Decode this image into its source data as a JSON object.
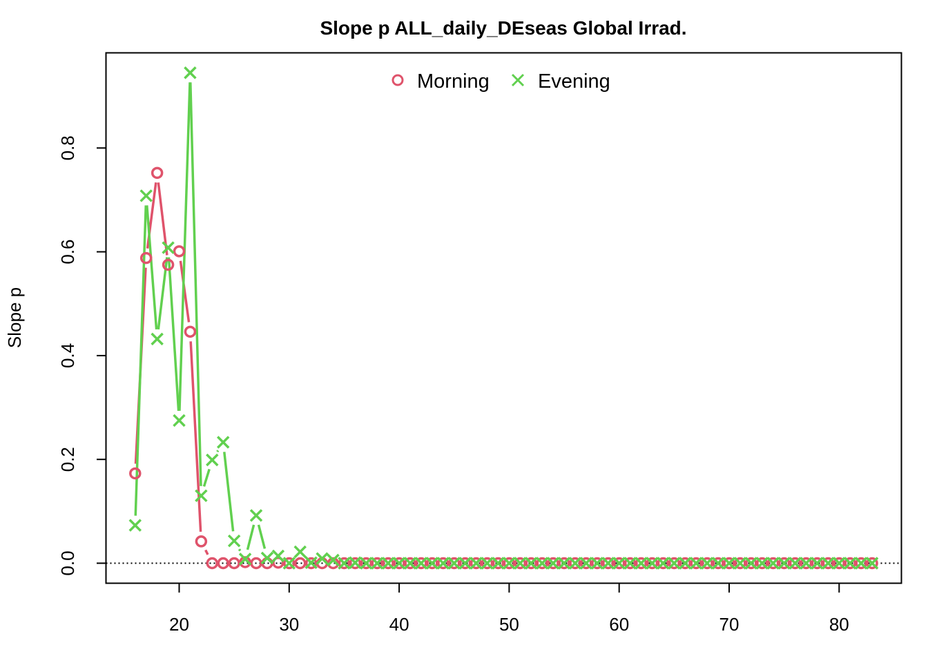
{
  "chart_data": {
    "type": "line",
    "title": "Slope p ALL_daily_DEseas Global Irrad.",
    "xlabel": "",
    "ylabel": "Slope p",
    "xlim": [
      16,
      83
    ],
    "ylim": [
      0,
      0.95
    ],
    "x_ticks": [
      "20",
      "30",
      "40",
      "50",
      "60",
      "70",
      "80"
    ],
    "y_ticks": [
      "0.0",
      "0.2",
      "0.4",
      "0.6",
      "0.8"
    ],
    "reference_line": {
      "y": 0,
      "style": "dotted"
    },
    "legend_position": "top-center",
    "grid": false,
    "x": [
      16,
      17,
      18,
      19,
      20,
      21,
      22,
      23,
      24,
      25,
      26,
      27,
      28,
      29,
      30,
      31,
      32,
      33,
      34,
      35,
      36,
      37,
      38,
      39,
      40,
      41,
      42,
      43,
      44,
      45,
      46,
      47,
      48,
      49,
      50,
      51,
      52,
      53,
      54,
      55,
      56,
      57,
      58,
      59,
      60,
      61,
      62,
      63,
      64,
      65,
      66,
      67,
      68,
      69,
      70,
      71,
      72,
      73,
      74,
      75,
      76,
      77,
      78,
      79,
      80,
      81,
      82,
      83
    ],
    "series": [
      {
        "name": "Morning",
        "color": "#DF536B",
        "marker": "circle",
        "values": [
          0.173,
          0.588,
          0.752,
          0.575,
          0.601,
          0.446,
          0.042,
          0.0,
          0.0,
          0.0,
          0.002,
          0.0,
          0.0,
          0.001,
          0.0,
          0.0,
          0.0,
          0.0,
          0.0,
          0.0,
          0.0,
          0.0,
          0.0,
          0.0,
          0.0,
          0.0,
          0.0,
          0.0,
          0.0,
          0.0,
          0.0,
          0.0,
          0.0,
          0.0,
          0.0,
          0.0,
          0.0,
          0.0,
          0.0,
          0.0,
          0.0,
          0.0,
          0.0,
          0.0,
          0.0,
          0.0,
          0.0,
          0.0,
          0.0,
          0.0,
          0.0,
          0.0,
          0.0,
          0.0,
          0.0,
          0.0,
          0.0,
          0.0,
          0.0,
          0.0,
          0.0,
          0.0,
          0.0,
          0.0,
          0.0,
          0.0,
          0.0,
          0.0
        ]
      },
      {
        "name": "Evening",
        "color": "#61D04F",
        "marker": "x",
        "values": [
          0.073,
          0.708,
          0.432,
          0.608,
          0.275,
          0.945,
          0.13,
          0.199,
          0.233,
          0.043,
          0.008,
          0.092,
          0.01,
          0.014,
          0.0,
          0.022,
          0.001,
          0.009,
          0.006,
          0.0,
          0.001,
          0.0,
          0.0,
          0.0,
          0.0,
          0.0,
          0.0,
          0.0,
          0.0,
          0.0,
          0.0,
          0.0,
          0.0,
          0.0,
          0.0,
          0.0,
          0.0,
          0.0,
          0.0,
          0.0,
          0.0,
          0.0,
          0.0,
          0.0,
          0.0,
          0.0,
          0.0,
          0.0,
          0.0,
          0.0,
          0.0,
          0.0,
          0.0,
          0.0,
          0.0,
          0.0,
          0.0,
          0.0,
          0.0,
          0.0,
          0.0,
          0.0,
          0.0,
          0.0,
          0.0,
          0.0,
          0.0,
          0.0
        ]
      }
    ]
  }
}
